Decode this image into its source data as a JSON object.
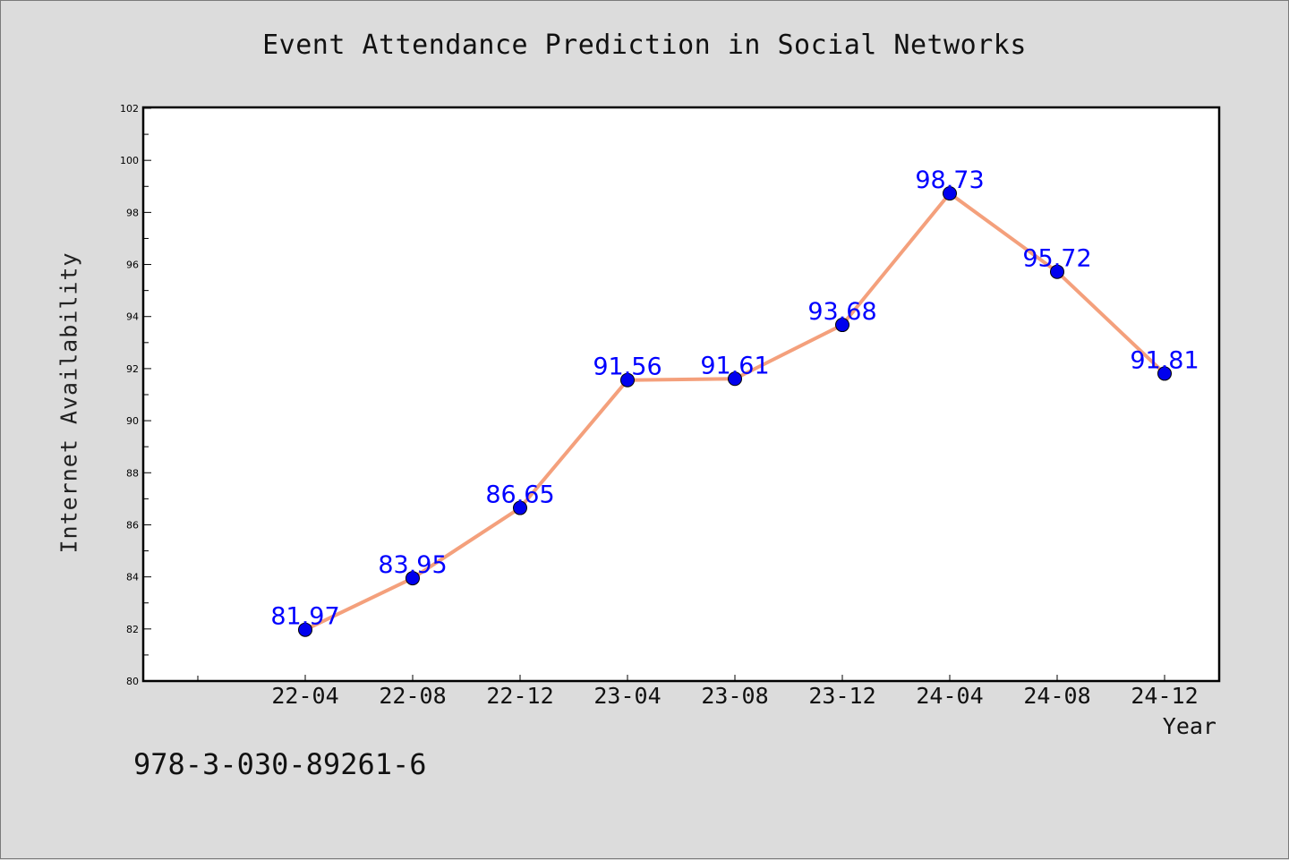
{
  "chart_data": {
    "type": "line",
    "title": "Event Attendance Prediction in Social Networks",
    "xlabel": "Year",
    "ylabel": "Internet Availability",
    "categories": [
      "22-04",
      "22-08",
      "22-12",
      "23-04",
      "23-08",
      "23-12",
      "24-04",
      "24-08",
      "24-12"
    ],
    "series": [
      {
        "values": [
          81.97,
          83.95,
          86.65,
          91.56,
          91.61,
          93.68,
          98.73,
          95.72,
          91.81
        ]
      }
    ],
    "ylim": [
      80,
      102
    ],
    "yticks": [
      "80",
      "82",
      "84",
      "86",
      "88",
      "90",
      "92",
      "94",
      "96",
      "98",
      "100",
      "102"
    ],
    "data_labels": [
      "81.97",
      "83.95",
      "86.65",
      "91.56",
      "91.61",
      "93.68",
      "98.73",
      "95.72",
      "91.81"
    ],
    "grid": false,
    "colors": {
      "line": "#f4a07c",
      "marker": "#0000ee",
      "label": "#0000ff",
      "background": "#dcdcdc",
      "plot_area": "#ffffff"
    }
  },
  "footer": {
    "code": "978-3-030-89261-6"
  }
}
